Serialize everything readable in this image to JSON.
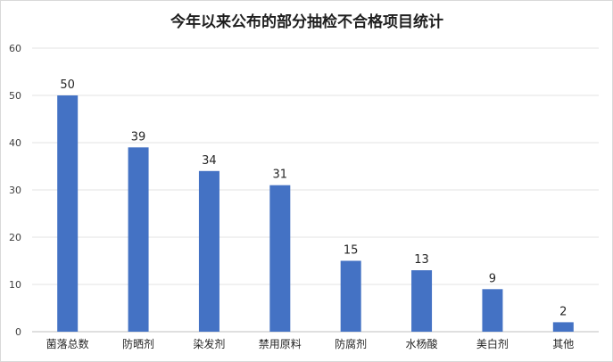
{
  "chart_data": {
    "type": "bar",
    "title": "今年以来公布的部分抽检不合格项目统计",
    "categories": [
      "菌落总数",
      "防晒剂",
      "染发剂",
      "禁用原料",
      "防腐剂",
      "水杨酸",
      "美白剂",
      "其他"
    ],
    "values": [
      50,
      39,
      34,
      31,
      15,
      13,
      9,
      2
    ],
    "yticks": [
      0,
      10,
      20,
      30,
      40,
      50,
      60
    ],
    "ylim": [
      0,
      60
    ],
    "grid": true,
    "xlabel": "",
    "ylabel": "",
    "bar_color": "#4472c4",
    "data_labels": true
  }
}
